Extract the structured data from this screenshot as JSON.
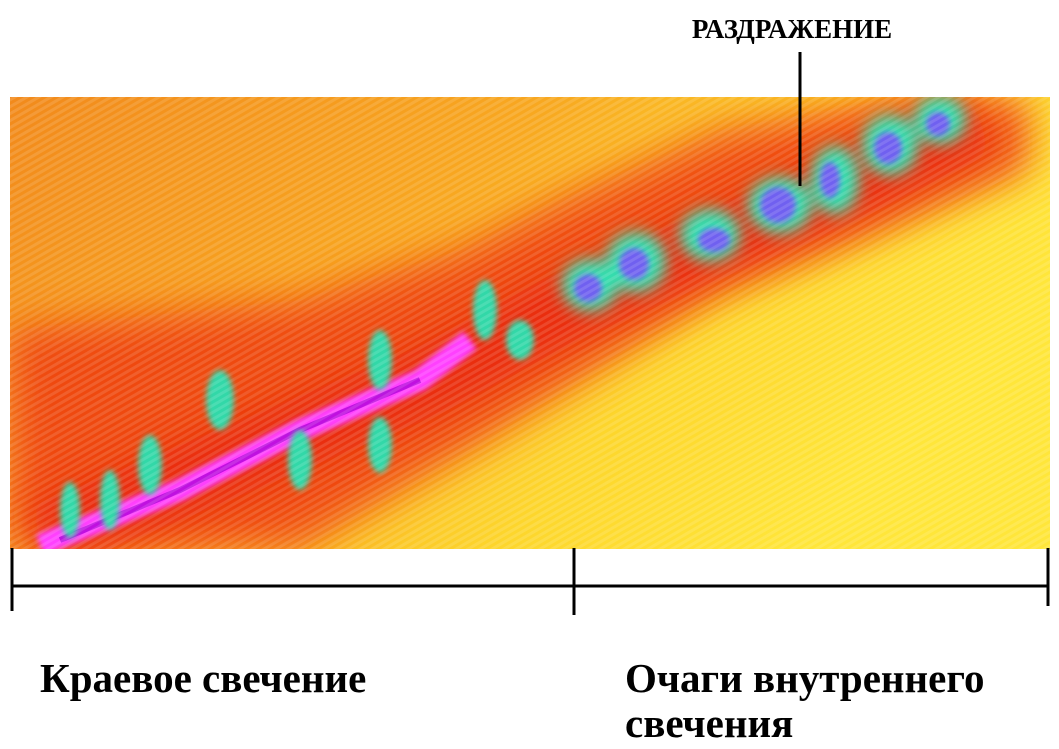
{
  "annotations": {
    "top_label": "РАЗДРАЖЕНИЕ",
    "left_label": "Краевое свечение",
    "right_label": [
      "Очаги внутреннего",
      "свечения"
    ]
  }
}
